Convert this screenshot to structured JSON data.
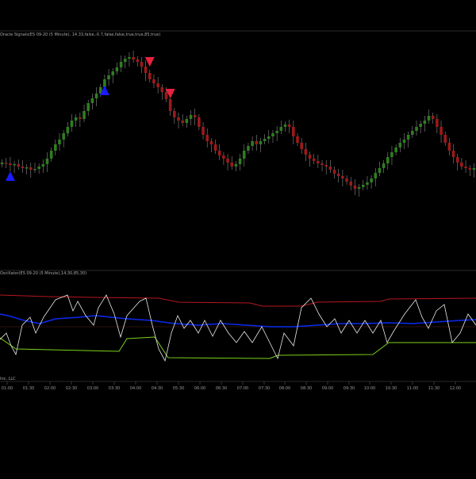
{
  "price_panel": {
    "title": "Oracle Signals(ES 09-20 (5 Minute), 14.33,false,-0.7,false,false,true,true,85,true)"
  },
  "oscillator_panel": {
    "title": "Oscillator(ES 09-20 (5 Minute),14,30,85,30)"
  },
  "copyright": "Inc, LLC",
  "time_axis": {
    "labels": [
      "01:00",
      "01:30",
      "02:00",
      "02:30",
      "03:00",
      "03:30",
      "04:00",
      "04:30",
      "05:30",
      "06:00",
      "06:30",
      "07:00",
      "07:30",
      "08:00",
      "08:30",
      "09:00",
      "09:30",
      "10:00",
      "10:30",
      "11:00",
      "11:30",
      "12:00"
    ]
  },
  "colors": {
    "background": "#000000",
    "bull_candle": "#2e7d1f",
    "bear_candle": "#9b1a1a",
    "wick": "#8a8a8a",
    "buy_signal": "#1b1bff",
    "sell_signal": "#e8213f",
    "upper_band": "#b5171f",
    "lower_band": "#7bd11a",
    "mid_line": "#0a2aee",
    "oscillator": "#e8e8e8",
    "zero_line": "#8a3a2a"
  },
  "signals": [
    {
      "type": "buy",
      "icon": "buy-signal-triangle-up",
      "bar": 2
    },
    {
      "type": "buy",
      "icon": "buy-signal-triangle-up",
      "bar": 25
    },
    {
      "type": "sell",
      "icon": "sell-signal-triangle-down",
      "bar": 36
    },
    {
      "type": "sell",
      "icon": "sell-signal-triangle-down",
      "bar": 41
    }
  ]
}
